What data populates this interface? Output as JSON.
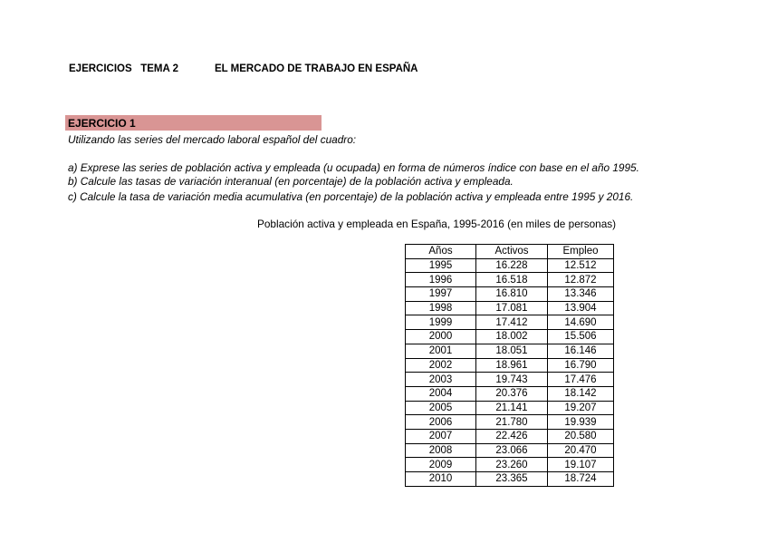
{
  "header": {
    "left": "EJERCICIOS   TEMA 2",
    "right": "EL MERCADO DE TRABAJO EN ESPAÑA"
  },
  "exercise": {
    "title": "EJERCICIO 1",
    "intro": "Utilizando las series del mercado laboral español del cuadro:",
    "questions": [
      "a) Exprese las series de población activa y empleada (u ocupada) en forma de números índice con base en el año 1995.",
      "b) Calcule las tasas de variación interanual (en porcentaje) de la población activa y empleada.",
      "c) Calcule la tasa de variación media acumulativa (en porcentaje) de la población activa y empleada entre 1995 y 2016."
    ],
    "header_color": "#d99594"
  },
  "table": {
    "caption": "Población activa y empleada en España, 1995-2016 (en miles de personas)",
    "columns": [
      "Años",
      "Activos",
      "Empleo"
    ],
    "rows": [
      [
        "1995",
        "16.228",
        "12.512"
      ],
      [
        "1996",
        "16.518",
        "12.872"
      ],
      [
        "1997",
        "16.810",
        "13.346"
      ],
      [
        "1998",
        "17.081",
        "13.904"
      ],
      [
        "1999",
        "17.412",
        "14.690"
      ],
      [
        "2000",
        "18.002",
        "15.506"
      ],
      [
        "2001",
        "18.051",
        "16.146"
      ],
      [
        "2002",
        "18.961",
        "16.790"
      ],
      [
        "2003",
        "19.743",
        "17.476"
      ],
      [
        "2004",
        "20.376",
        "18.142"
      ],
      [
        "2005",
        "21.141",
        "19.207"
      ],
      [
        "2006",
        "21.780",
        "19.939"
      ],
      [
        "2007",
        "22.426",
        "20.580"
      ],
      [
        "2008",
        "23.066",
        "20.470"
      ],
      [
        "2009",
        "23.260",
        "19.107"
      ],
      [
        "2010",
        "23.365",
        "18.724"
      ]
    ]
  }
}
